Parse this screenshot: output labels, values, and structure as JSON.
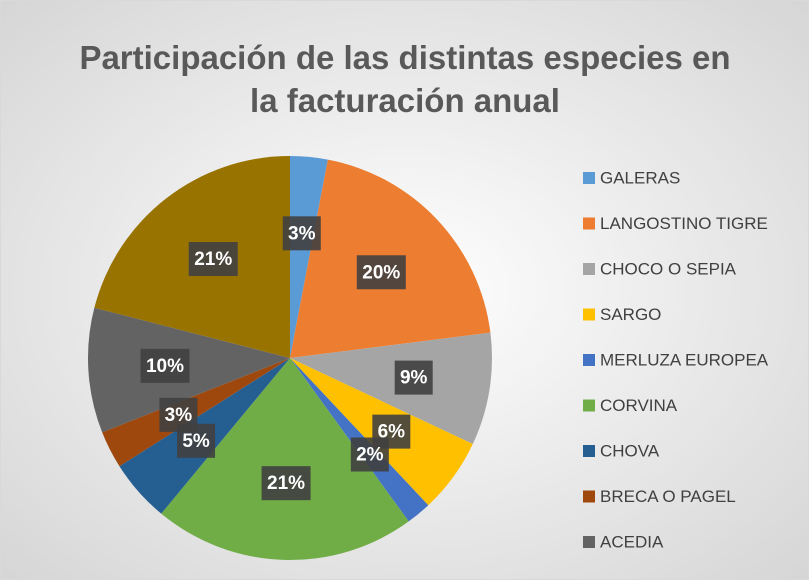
{
  "chart_data": {
    "type": "pie",
    "title": "Participación de las distintas especies en la facturación anual",
    "categories": [
      "GALERAS",
      "LANGOSTINO TIGRE",
      "CHOCO O SEPIA",
      "SARGO",
      "MERLUZA EUROPEA",
      "CORVINA",
      "CHOVA",
      "BRECA O PAGEL",
      "ACEDIA",
      null
    ],
    "values": [
      3,
      20,
      9,
      6,
      2,
      21,
      5,
      3,
      10,
      21
    ],
    "value_labels": [
      "3%",
      "20%",
      "9%",
      "6%",
      "2%",
      "21%",
      "5%",
      "3%",
      "10%",
      "21%"
    ],
    "colors": [
      "#5b9bd5",
      "#ed7d31",
      "#a5a5a5",
      "#ffc000",
      "#4472c4",
      "#70ad47",
      "#255e91",
      "#9e480e",
      "#636363",
      "#997300"
    ],
    "legend": "right"
  }
}
